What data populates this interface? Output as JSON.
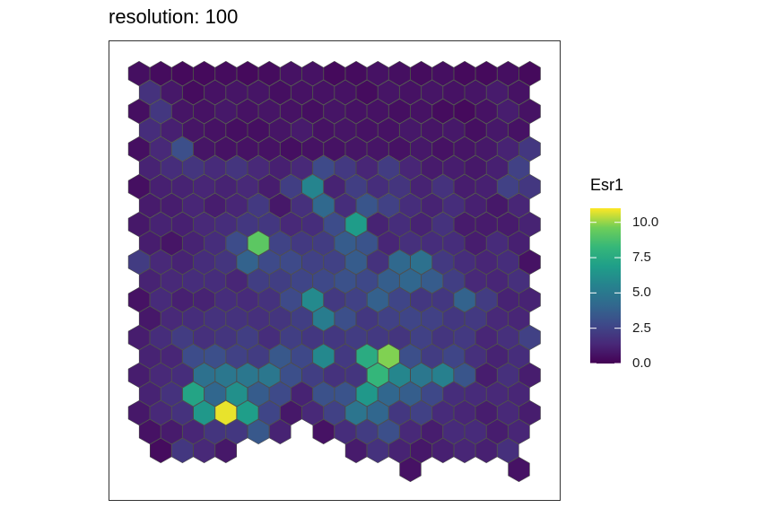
{
  "chart_data": {
    "type": "heatmap",
    "subtype": "hexbin",
    "title": "resolution: 100",
    "fill_label": "Esr1",
    "colormap": "viridis",
    "color_range": [
      0,
      11
    ],
    "legend": {
      "position": "right",
      "ticks": [
        0.0,
        2.5,
        5.0,
        7.5,
        10.0
      ],
      "tick_labels": [
        "0.0",
        "2.5",
        "5.0",
        "7.5",
        "10.0"
      ]
    },
    "panel_border": true,
    "grid": false,
    "rows": [
      {
        "row": 0,
        "values": [
          0.5,
          0.4,
          0.3,
          0.3,
          0.4,
          0.3,
          0.4,
          0.6,
          0.6,
          0.3,
          0.4,
          0.6,
          0.5,
          0.4,
          0.5,
          0.3,
          0.3,
          0.5,
          0.3
        ],
        "start_col": 0
      },
      {
        "row": 1,
        "values": [
          1.8,
          0.8,
          0.4,
          0.6,
          0.7,
          0.7,
          0.5,
          0.6,
          0.6,
          0.6,
          0.4,
          0.7,
          0.6,
          0.7,
          0.6,
          0.7,
          0.9,
          0.6
        ],
        "start_col": 0
      },
      {
        "row": 2,
        "values": [
          0.5,
          2.0,
          0.7,
          0.6,
          0.8,
          0.6,
          0.7,
          0.6,
          0.5,
          0.7,
          0.6,
          0.6,
          0.5,
          0.6,
          0.4,
          0.3,
          0.6,
          1.0,
          0.6
        ],
        "start_col": 0
      },
      {
        "row": 3,
        "values": [
          1.6,
          1.1,
          0.7,
          0.6,
          0.5,
          0.5,
          0.7,
          0.9,
          0.6,
          0.7,
          0.6,
          0.6,
          0.8,
          0.7,
          0.8,
          0.5,
          0.8,
          0.6
        ],
        "start_col": 0
      },
      {
        "row": 4,
        "values": [
          0.5,
          1.4,
          3.0,
          0.7,
          0.6,
          0.6,
          0.6,
          0.5,
          0.6,
          0.6,
          0.7,
          0.7,
          0.6,
          0.8,
          0.6,
          0.7,
          0.8,
          1.2,
          2.0
        ],
        "start_col": 0
      },
      {
        "row": 5,
        "values": [
          1.2,
          1.6,
          1.9,
          1.5,
          1.9,
          1.4,
          1.1,
          1.4,
          2.8,
          2.1,
          1.3,
          2.2,
          1.3,
          0.9,
          1.0,
          0.8,
          1.1,
          2.4
        ],
        "start_col": 0
      },
      {
        "row": 6,
        "values": [
          0.5,
          1.1,
          1.2,
          1.3,
          1.2,
          1.4,
          1.0,
          2.3,
          5.6,
          1.2,
          2.3,
          1.6,
          1.9,
          1.2,
          1.8,
          1.0,
          1.1,
          2.4,
          2.0
        ],
        "start_col": 0
      },
      {
        "row": 7,
        "values": [
          0.9,
          1.0,
          1.3,
          1.0,
          1.3,
          2.1,
          0.8,
          1.7,
          4.2,
          1.6,
          3.3,
          2.4,
          1.6,
          1.2,
          1.6,
          1.1,
          0.8,
          1.3
        ],
        "start_col": 0
      },
      {
        "row": 8,
        "values": [
          0.8,
          1.2,
          1.1,
          1.4,
          1.6,
          2.0,
          2.0,
          1.4,
          1.6,
          2.9,
          6.8,
          1.2,
          1.6,
          1.2,
          1.8,
          0.9,
          0.9,
          0.9,
          1.2
        ],
        "start_col": 0
      },
      {
        "row": 9,
        "values": [
          1.0,
          0.7,
          1.2,
          1.6,
          2.9,
          9.2,
          2.5,
          2.1,
          2.2,
          3.6,
          3.2,
          1.3,
          1.7,
          1.6,
          1.6,
          1.0,
          1.5,
          1.1
        ],
        "start_col": 0
      },
      {
        "row": 10,
        "values": [
          2.2,
          1.4,
          1.2,
          1.6,
          1.9,
          3.9,
          2.8,
          2.8,
          2.4,
          2.4,
          3.6,
          1.8,
          4.2,
          4.6,
          2.1,
          1.6,
          1.3,
          1.6,
          0.6
        ],
        "start_col": 0
      },
      {
        "row": 11,
        "values": [
          1.2,
          1.4,
          1.6,
          1.6,
          1.3,
          2.3,
          2.3,
          2.6,
          2.7,
          3.1,
          2.7,
          3.7,
          4.1,
          3.6,
          2.3,
          1.4,
          1.3,
          1.7
        ],
        "start_col": 0
      },
      {
        "row": 12,
        "values": [
          0.6,
          1.5,
          1.1,
          1.2,
          1.6,
          1.5,
          1.8,
          2.8,
          5.9,
          2.1,
          2.4,
          3.8,
          2.6,
          2.0,
          2.0,
          3.9,
          2.2,
          1.2,
          1.2
        ],
        "start_col": 0
      },
      {
        "row": 13,
        "values": [
          0.8,
          1.4,
          1.6,
          1.8,
          1.8,
          1.7,
          1.9,
          2.3,
          5.2,
          3.0,
          2.0,
          2.4,
          2.6,
          2.4,
          2.0,
          2.1,
          1.4,
          1.3
        ],
        "start_col": 0
      },
      {
        "row": 14,
        "values": [
          1.0,
          1.6,
          2.2,
          1.7,
          1.9,
          2.3,
          1.6,
          2.3,
          2.0,
          2.0,
          2.2,
          2.1,
          1.9,
          2.4,
          1.9,
          2.1,
          1.3,
          1.7,
          2.4
        ],
        "start_col": 0
      },
      {
        "row": 15,
        "values": [
          1.2,
          1.3,
          2.9,
          3.0,
          2.4,
          2.2,
          3.4,
          2.7,
          5.8,
          2.1,
          7.6,
          9.8,
          3.0,
          2.2,
          2.6,
          1.7,
          1.2,
          1.6
        ],
        "start_col": 0
      },
      {
        "row": 16,
        "values": [
          1.0,
          1.4,
          1.6,
          4.6,
          4.9,
          4.9,
          4.9,
          3.0,
          2.3,
          1.8,
          1.9,
          8.2,
          5.7,
          4.9,
          5.4,
          3.3,
          1.0,
          1.7,
          1.0
        ],
        "start_col": 0
      },
      {
        "row": 17,
        "values": [
          1.2,
          1.8,
          7.2,
          4.1,
          6.2,
          3.6,
          2.8,
          1.2,
          3.1,
          3.2,
          6.6,
          4.1,
          3.7,
          2.7,
          1.6,
          1.5,
          1.4,
          1.3
        ],
        "start_col": 0
      },
      {
        "row": 18,
        "values": [
          0.8,
          1.4,
          1.8,
          6.6,
          10.8,
          6.9,
          2.6,
          0.8,
          1.4,
          2.4,
          4.8,
          4.1,
          2.0,
          2.4,
          1.5,
          1.3,
          1.0,
          1.4,
          1.0
        ],
        "start_col": 0
      },
      {
        "row": 19,
        "values": [
          0.6,
          0.9,
          1.3,
          1.9,
          2.0,
          3.4,
          1.2,
          null,
          0.6,
          1.6,
          2.2,
          3.0,
          1.4,
          1.0,
          1.5,
          1.5,
          1.0,
          1.3
        ],
        "start_col": 0
      },
      {
        "row": 20,
        "values": [
          null,
          0.4,
          2.0,
          1.4,
          0.8,
          null,
          null,
          null,
          null,
          null,
          0.9,
          1.8,
          1.2,
          0.8,
          1.1,
          1.3,
          1.1,
          1.7,
          null
        ],
        "start_col": 0
      },
      {
        "row": 21,
        "values": [
          null,
          null,
          null,
          null,
          null,
          null,
          null,
          null,
          null,
          null,
          null,
          null,
          0.6,
          null,
          null,
          null,
          null,
          0.6
        ],
        "start_col": 0
      }
    ]
  }
}
